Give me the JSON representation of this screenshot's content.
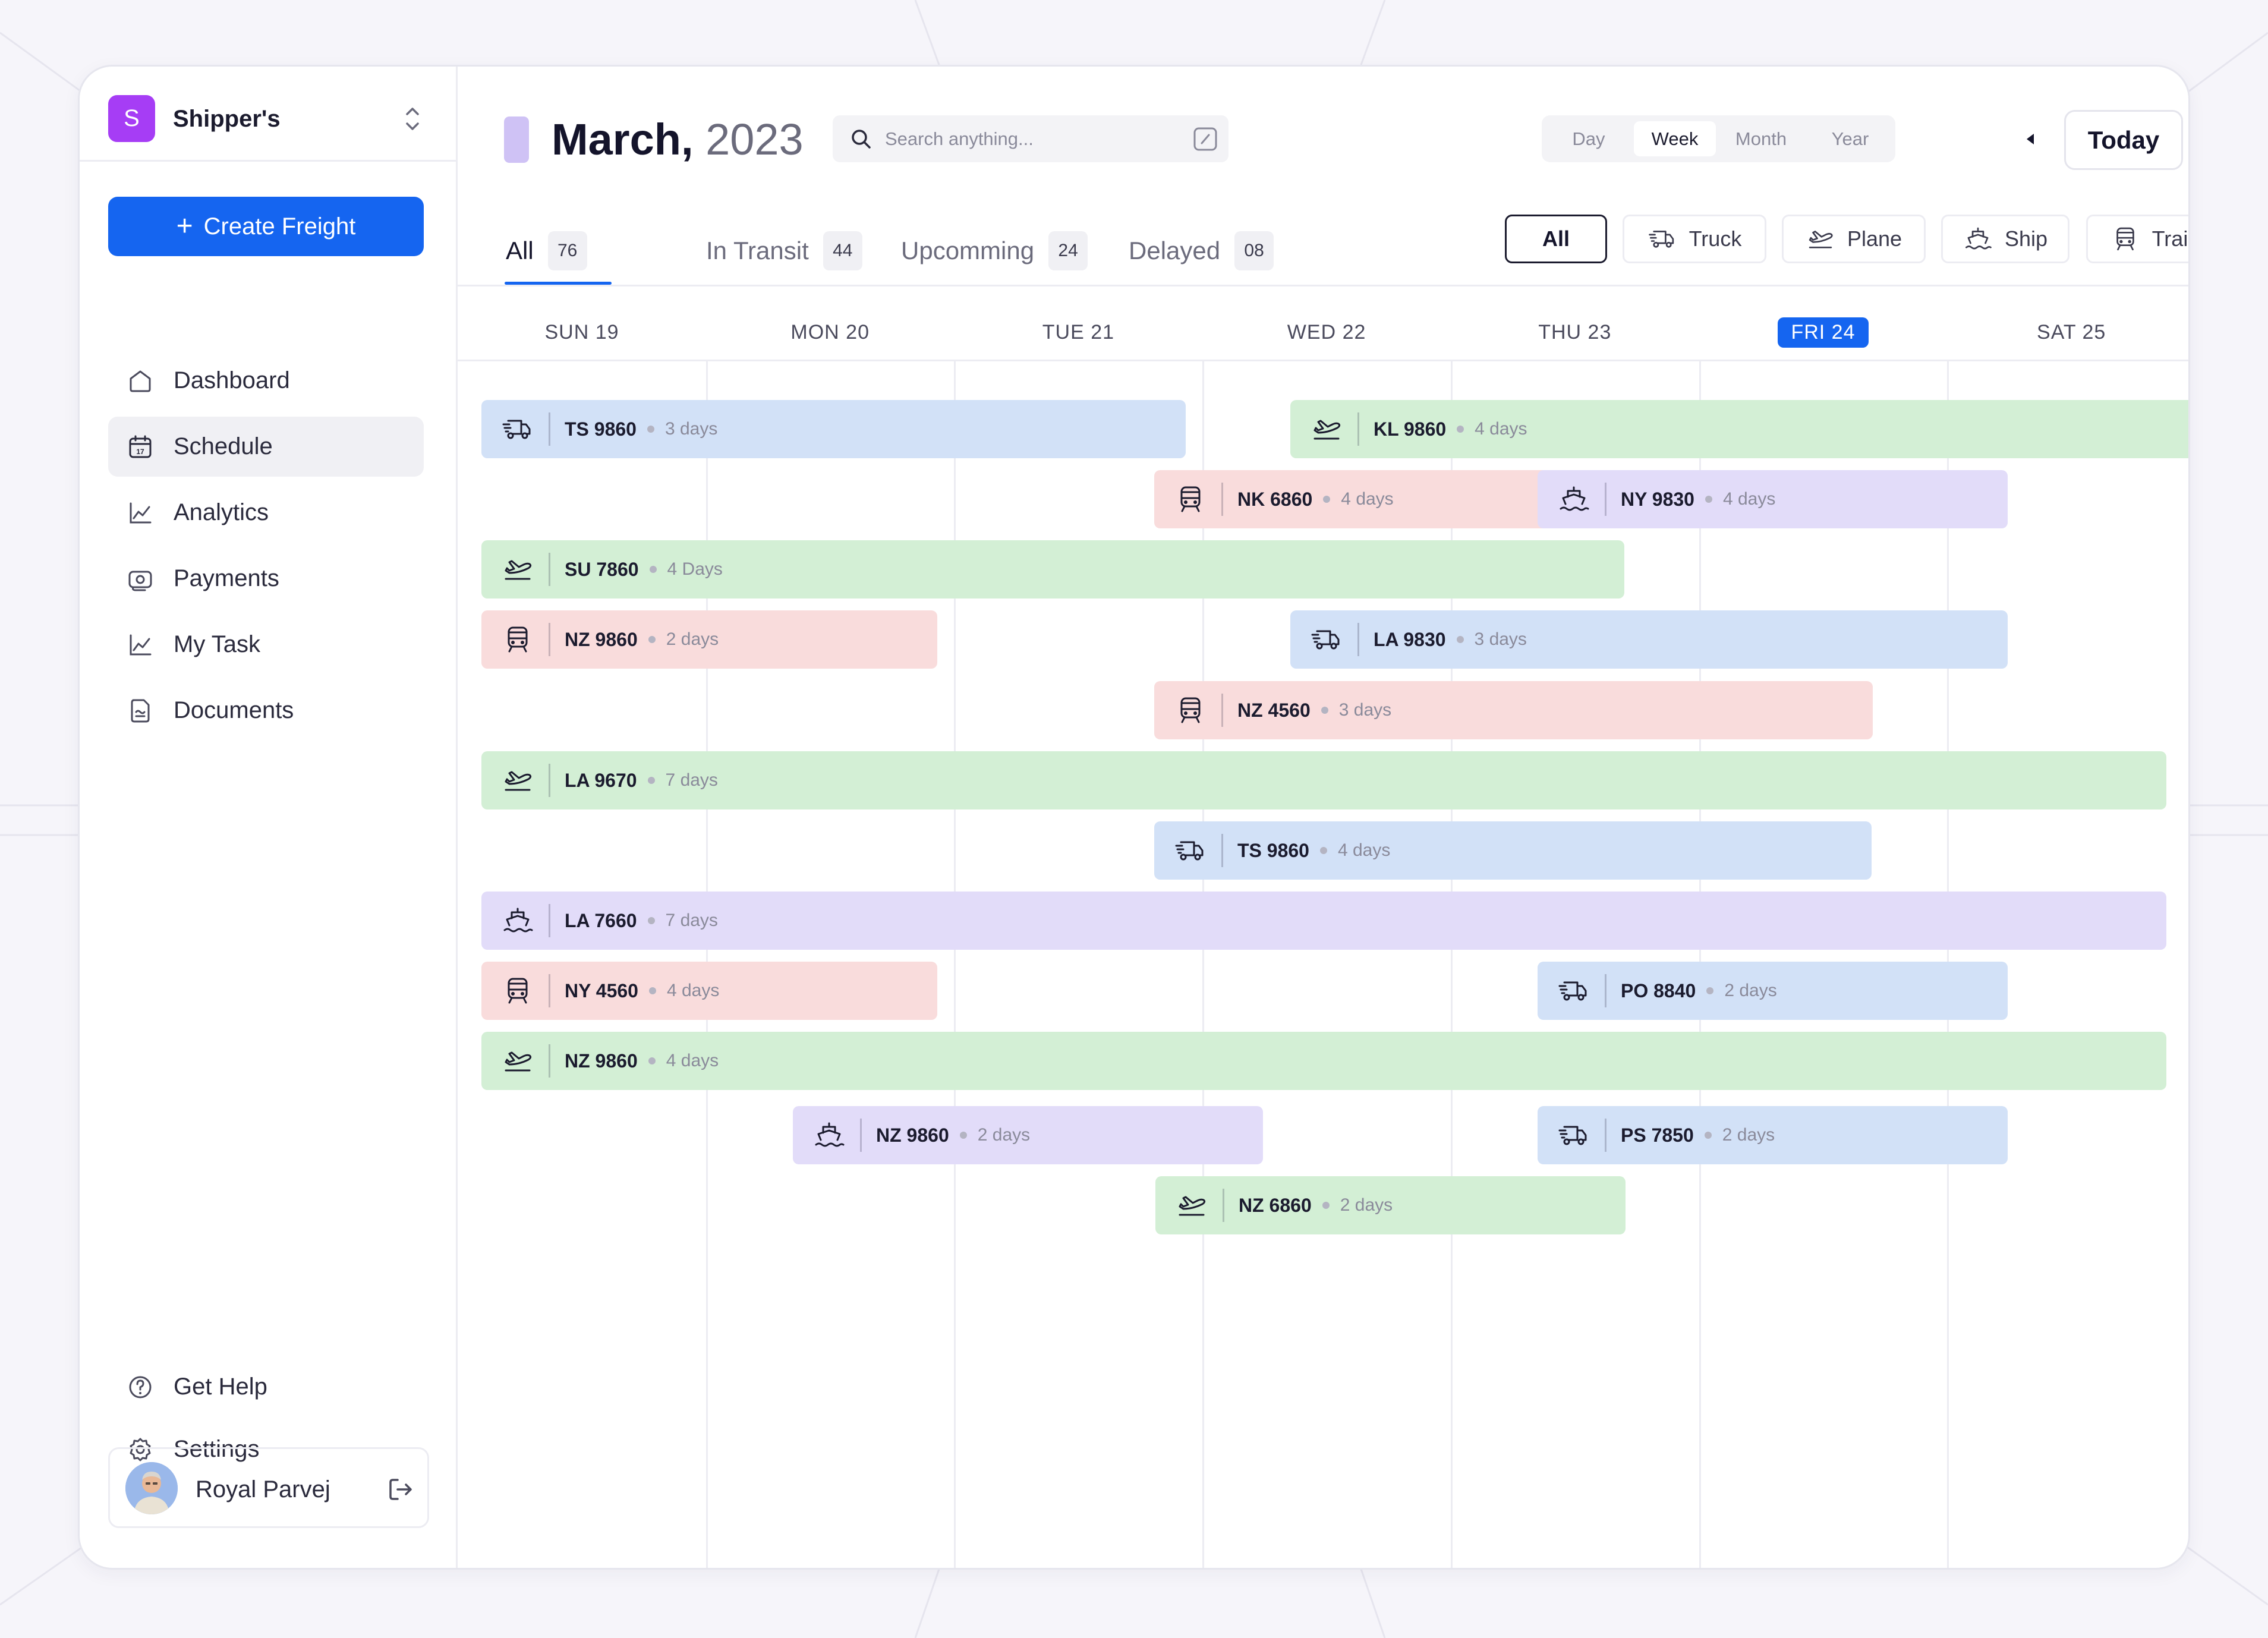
{
  "brand": {
    "initial": "S",
    "name": "Shipper's"
  },
  "sidebar": {
    "create_label": "Create Freight",
    "items": [
      {
        "label": "Dashboard",
        "icon": "home-icon"
      },
      {
        "label": "Schedule",
        "icon": "calendar-icon",
        "active": true
      },
      {
        "label": "Analytics",
        "icon": "chart-icon"
      },
      {
        "label": "Payments",
        "icon": "wallet-icon"
      },
      {
        "label": "My Task",
        "icon": "chart-icon"
      },
      {
        "label": "Documents",
        "icon": "document-icon"
      }
    ],
    "help_label": "Get Help",
    "settings_label": "Settings",
    "user_name": "Royal Parvej"
  },
  "header": {
    "month": "March,",
    "year": "2023",
    "search_placeholder": "Search anything...",
    "views": [
      "Day",
      "Week",
      "Month",
      "Year"
    ],
    "active_view": "Week",
    "today_label": "Today"
  },
  "status_tabs": [
    {
      "label": "All",
      "count": "76"
    },
    {
      "label": "In Transit",
      "count": "44"
    },
    {
      "label": "Upcomming",
      "count": "24"
    },
    {
      "label": "Delayed",
      "count": "08"
    }
  ],
  "filters": [
    {
      "label": "All"
    },
    {
      "label": "Truck",
      "icon": "truck-icon"
    },
    {
      "label": "Plane",
      "icon": "plane-icon"
    },
    {
      "label": "Ship",
      "icon": "ship-icon"
    },
    {
      "label": "Train",
      "icon": "train-icon"
    }
  ],
  "days": [
    "SUN 19",
    "MON 20",
    "TUE 21",
    "WED 22",
    "THU 23",
    "FRI 24",
    "SAT 25"
  ],
  "today_day": "FRI 24",
  "colors": {
    "accent": "#1565f0",
    "plane": "#d3efd5",
    "truck": "#d2e1f7",
    "train": "#f9dcdc",
    "ship": "#e2dcf9"
  },
  "shipments": [
    {
      "code": "TS 9860",
      "duration": "3 days",
      "type": "truck"
    },
    {
      "code": "KL 9860",
      "duration": "4 days",
      "type": "plane"
    },
    {
      "code": "NK 6860",
      "duration": "4 days",
      "type": "train"
    },
    {
      "code": "NY 9830",
      "duration": "4 days",
      "type": "ship"
    },
    {
      "code": "SU 7860",
      "duration": "4 Days",
      "type": "plane"
    },
    {
      "code": "NZ 9860",
      "duration": "2 days",
      "type": "train"
    },
    {
      "code": "LA 9830",
      "duration": "3 days",
      "type": "truck"
    },
    {
      "code": "NZ 4560",
      "duration": "3 days",
      "type": "train"
    },
    {
      "code": "LA 9670",
      "duration": "7 days",
      "type": "plane"
    },
    {
      "code": "TS 9860",
      "duration": "4 days",
      "type": "truck"
    },
    {
      "code": "LA 7660",
      "duration": "7 days",
      "type": "ship"
    },
    {
      "code": "NY 4560",
      "duration": "4 days",
      "type": "train"
    },
    {
      "code": "PO 8840",
      "duration": "2 days",
      "type": "truck"
    },
    {
      "code": "NZ 9860",
      "duration": "4 days",
      "type": "plane"
    },
    {
      "code": "NZ 9860",
      "duration": "2 days",
      "type": "ship"
    },
    {
      "code": "PS 7850",
      "duration": "2 days",
      "type": "truck"
    },
    {
      "code": "NZ 6860",
      "duration": "2 days",
      "type": "plane"
    }
  ]
}
